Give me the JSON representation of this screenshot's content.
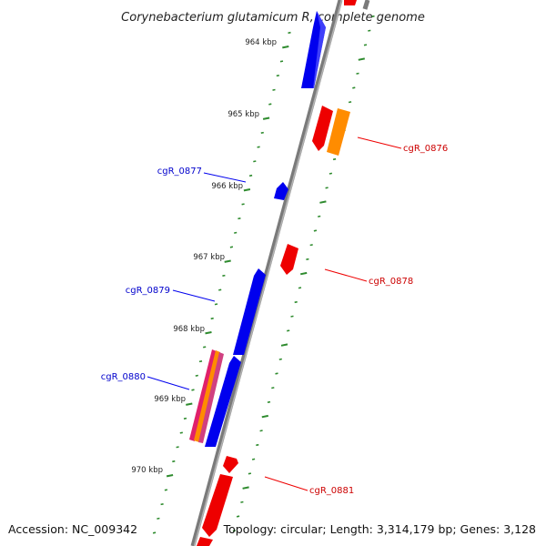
{
  "title": "Corynebacterium glutamicum R, complete genome",
  "accession": "Accession: NC_009342",
  "summary": "Topology: circular; Length: 3,314,179 bp; Genes: 3,128",
  "colors": {
    "forward": "#0000ee",
    "reverse": "#ee0000",
    "rna": "#ff8c00",
    "mixed": "#e0206a",
    "tick": "#2e8b2e",
    "backbone": "#888888"
  },
  "scale_labels": [
    "964 kbp",
    "965 kbp",
    "966 kbp",
    "967 kbp",
    "968 kbp",
    "969 kbp",
    "970 kbp"
  ],
  "gene_labels": [
    {
      "text": "cgR_0876",
      "strand": "reverse"
    },
    {
      "text": "cgR_0877",
      "strand": "forward"
    },
    {
      "text": "cgR_0878",
      "strand": "reverse"
    },
    {
      "text": "cgR_0879",
      "strand": "forward"
    },
    {
      "text": "cgR_0880",
      "strand": "forward"
    },
    {
      "text": "cgR_0881",
      "strand": "reverse"
    }
  ]
}
